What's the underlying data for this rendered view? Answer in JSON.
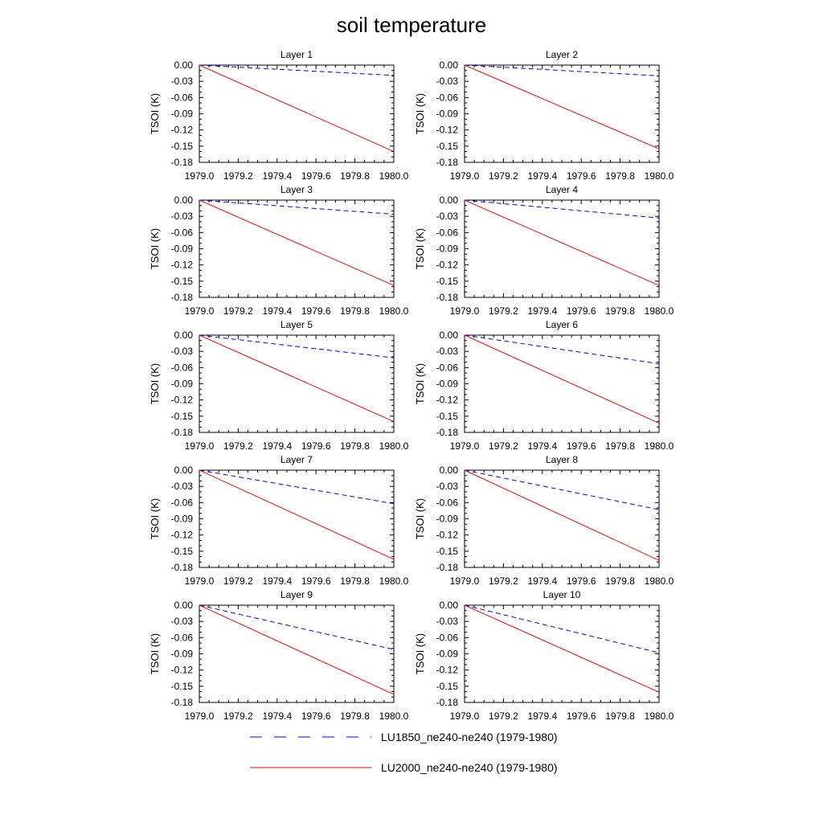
{
  "title": "soil temperature",
  "legend": {
    "placement": "bottom",
    "entries": [
      {
        "label": "LU1850_ne240-ne240 (1979-1980)",
        "color": "#0000ff",
        "style": "dashed"
      },
      {
        "label": "LU2000_ne240-ne240 (1979-1980)",
        "color": "#ff0000",
        "style": "solid"
      }
    ]
  },
  "chart_data": [
    {
      "type": "line",
      "title": "Layer 1",
      "ylabel": "TSOI  (K)",
      "xlabel": "",
      "xlim": [
        1979.0,
        1980.0
      ],
      "ylim": [
        -0.18,
        0.0
      ],
      "xticks": [
        "1979.0",
        "1979.2",
        "1979.4",
        "1979.6",
        "1979.8",
        "1980.0"
      ],
      "yticks": [
        "0.00",
        "-0.03",
        "-0.06",
        "-0.09",
        "-0.12",
        "-0.15",
        "-0.18"
      ],
      "series": [
        {
          "name": "LU1850_ne240-ne240 (1979-1980)",
          "x": [
            1979.0,
            1980.0
          ],
          "y": [
            0.0,
            -0.019
          ]
        },
        {
          "name": "LU2000_ne240-ne240 (1979-1980)",
          "x": [
            1979.0,
            1980.0
          ],
          "y": [
            0.0,
            -0.16
          ]
        }
      ]
    },
    {
      "type": "line",
      "title": "Layer 2",
      "ylabel": "TSOI  (K)",
      "xlabel": "",
      "xlim": [
        1979.0,
        1980.0
      ],
      "ylim": [
        -0.18,
        0.0
      ],
      "xticks": [
        "1979.0",
        "1979.2",
        "1979.4",
        "1979.6",
        "1979.8",
        "1980.0"
      ],
      "yticks": [
        "0.00",
        "-0.03",
        "-0.06",
        "-0.09",
        "-0.12",
        "-0.15",
        "-0.18"
      ],
      "series": [
        {
          "name": "LU1850_ne240-ne240 (1979-1980)",
          "x": [
            1979.0,
            1980.0
          ],
          "y": [
            0.0,
            -0.02
          ]
        },
        {
          "name": "LU2000_ne240-ne240 (1979-1980)",
          "x": [
            1979.0,
            1980.0
          ],
          "y": [
            0.0,
            -0.155
          ]
        }
      ]
    },
    {
      "type": "line",
      "title": "Layer 3",
      "ylabel": "TSOI  (K)",
      "xlabel": "",
      "xlim": [
        1979.0,
        1980.0
      ],
      "ylim": [
        -0.18,
        0.0
      ],
      "xticks": [
        "1979.0",
        "1979.2",
        "1979.4",
        "1979.6",
        "1979.8",
        "1980.0"
      ],
      "yticks": [
        "0.00",
        "-0.03",
        "-0.06",
        "-0.09",
        "-0.12",
        "-0.15",
        "-0.18"
      ],
      "series": [
        {
          "name": "LU1850_ne240-ne240 (1979-1980)",
          "x": [
            1979.0,
            1980.0
          ],
          "y": [
            0.0,
            -0.026
          ]
        },
        {
          "name": "LU2000_ne240-ne240 (1979-1980)",
          "x": [
            1979.0,
            1980.0
          ],
          "y": [
            0.0,
            -0.158
          ]
        }
      ]
    },
    {
      "type": "line",
      "title": "Layer 4",
      "ylabel": "TSOI  (K)",
      "xlabel": "",
      "xlim": [
        1979.0,
        1980.0
      ],
      "ylim": [
        -0.18,
        0.0
      ],
      "xticks": [
        "1979.0",
        "1979.2",
        "1979.4",
        "1979.6",
        "1979.8",
        "1980.0"
      ],
      "yticks": [
        "0.00",
        "-0.03",
        "-0.06",
        "-0.09",
        "-0.12",
        "-0.15",
        "-0.18"
      ],
      "series": [
        {
          "name": "LU1850_ne240-ne240 (1979-1980)",
          "x": [
            1979.0,
            1980.0
          ],
          "y": [
            0.0,
            -0.033
          ]
        },
        {
          "name": "LU2000_ne240-ne240 (1979-1980)",
          "x": [
            1979.0,
            1980.0
          ],
          "y": [
            0.0,
            -0.158
          ]
        }
      ]
    },
    {
      "type": "line",
      "title": "Layer 5",
      "ylabel": "TSOI  (K)",
      "xlabel": "",
      "xlim": [
        1979.0,
        1980.0
      ],
      "ylim": [
        -0.18,
        0.0
      ],
      "xticks": [
        "1979.0",
        "1979.2",
        "1979.4",
        "1979.6",
        "1979.8",
        "1980.0"
      ],
      "yticks": [
        "0.00",
        "-0.03",
        "-0.06",
        "-0.09",
        "-0.12",
        "-0.15",
        "-0.18"
      ],
      "series": [
        {
          "name": "LU1850_ne240-ne240 (1979-1980)",
          "x": [
            1979.0,
            1980.0
          ],
          "y": [
            0.0,
            -0.042
          ]
        },
        {
          "name": "LU2000_ne240-ne240 (1979-1980)",
          "x": [
            1979.0,
            1980.0
          ],
          "y": [
            0.0,
            -0.16
          ]
        }
      ]
    },
    {
      "type": "line",
      "title": "Layer 6",
      "ylabel": "TSOI  (K)",
      "xlabel": "",
      "xlim": [
        1979.0,
        1980.0
      ],
      "ylim": [
        -0.18,
        0.0
      ],
      "xticks": [
        "1979.0",
        "1979.2",
        "1979.4",
        "1979.6",
        "1979.8",
        "1980.0"
      ],
      "yticks": [
        "0.00",
        "-0.03",
        "-0.06",
        "-0.09",
        "-0.12",
        "-0.15",
        "-0.18"
      ],
      "series": [
        {
          "name": "LU1850_ne240-ne240 (1979-1980)",
          "x": [
            1979.0,
            1980.0
          ],
          "y": [
            0.0,
            -0.053
          ]
        },
        {
          "name": "LU2000_ne240-ne240 (1979-1980)",
          "x": [
            1979.0,
            1980.0
          ],
          "y": [
            0.0,
            -0.163
          ]
        }
      ]
    },
    {
      "type": "line",
      "title": "Layer 7",
      "ylabel": "TSOI  (K)",
      "xlabel": "",
      "xlim": [
        1979.0,
        1980.0
      ],
      "ylim": [
        -0.18,
        0.0
      ],
      "xticks": [
        "1979.0",
        "1979.2",
        "1979.4",
        "1979.6",
        "1979.8",
        "1980.0"
      ],
      "yticks": [
        "0.00",
        "-0.03",
        "-0.06",
        "-0.09",
        "-0.12",
        "-0.15",
        "-0.18"
      ],
      "series": [
        {
          "name": "LU1850_ne240-ne240 (1979-1980)",
          "x": [
            1979.0,
            1980.0
          ],
          "y": [
            0.0,
            -0.062
          ]
        },
        {
          "name": "LU2000_ne240-ne240 (1979-1980)",
          "x": [
            1979.0,
            1980.0
          ],
          "y": [
            0.0,
            -0.165
          ]
        }
      ]
    },
    {
      "type": "line",
      "title": "Layer 8",
      "ylabel": "TSOI  (K)",
      "xlabel": "",
      "xlim": [
        1979.0,
        1980.0
      ],
      "ylim": [
        -0.18,
        0.0
      ],
      "xticks": [
        "1979.0",
        "1979.2",
        "1979.4",
        "1979.6",
        "1979.8",
        "1980.0"
      ],
      "yticks": [
        "0.00",
        "-0.03",
        "-0.06",
        "-0.09",
        "-0.12",
        "-0.15",
        "-0.18"
      ],
      "series": [
        {
          "name": "LU1850_ne240-ne240 (1979-1980)",
          "x": [
            1979.0,
            1980.0
          ],
          "y": [
            0.0,
            -0.073
          ]
        },
        {
          "name": "LU2000_ne240-ne240 (1979-1980)",
          "x": [
            1979.0,
            1980.0
          ],
          "y": [
            0.0,
            -0.167
          ]
        }
      ]
    },
    {
      "type": "line",
      "title": "Layer 9",
      "ylabel": "TSOI  (K)",
      "xlabel": "",
      "xlim": [
        1979.0,
        1980.0
      ],
      "ylim": [
        -0.18,
        0.0
      ],
      "xticks": [
        "1979.0",
        "1979.2",
        "1979.4",
        "1979.6",
        "1979.8",
        "1980.0"
      ],
      "yticks": [
        "0.00",
        "-0.03",
        "-0.06",
        "-0.09",
        "-0.12",
        "-0.15",
        "-0.18"
      ],
      "series": [
        {
          "name": "LU1850_ne240-ne240 (1979-1980)",
          "x": [
            1979.0,
            1980.0
          ],
          "y": [
            0.0,
            -0.082
          ]
        },
        {
          "name": "LU2000_ne240-ne240 (1979-1980)",
          "x": [
            1979.0,
            1980.0
          ],
          "y": [
            0.0,
            -0.165
          ]
        }
      ]
    },
    {
      "type": "line",
      "title": "Layer 10",
      "ylabel": "TSOI  (K)",
      "xlabel": "",
      "xlim": [
        1979.0,
        1980.0
      ],
      "ylim": [
        -0.18,
        0.0
      ],
      "xticks": [
        "1979.0",
        "1979.2",
        "1979.4",
        "1979.6",
        "1979.8",
        "1980.0"
      ],
      "yticks": [
        "0.00",
        "-0.03",
        "-0.06",
        "-0.09",
        "-0.12",
        "-0.15",
        "-0.18"
      ],
      "series": [
        {
          "name": "LU1850_ne240-ne240 (1979-1980)",
          "x": [
            1979.0,
            1980.0
          ],
          "y": [
            0.0,
            -0.088
          ]
        },
        {
          "name": "LU2000_ne240-ne240 (1979-1980)",
          "x": [
            1979.0,
            1980.0
          ],
          "y": [
            0.0,
            -0.161
          ]
        }
      ]
    }
  ]
}
